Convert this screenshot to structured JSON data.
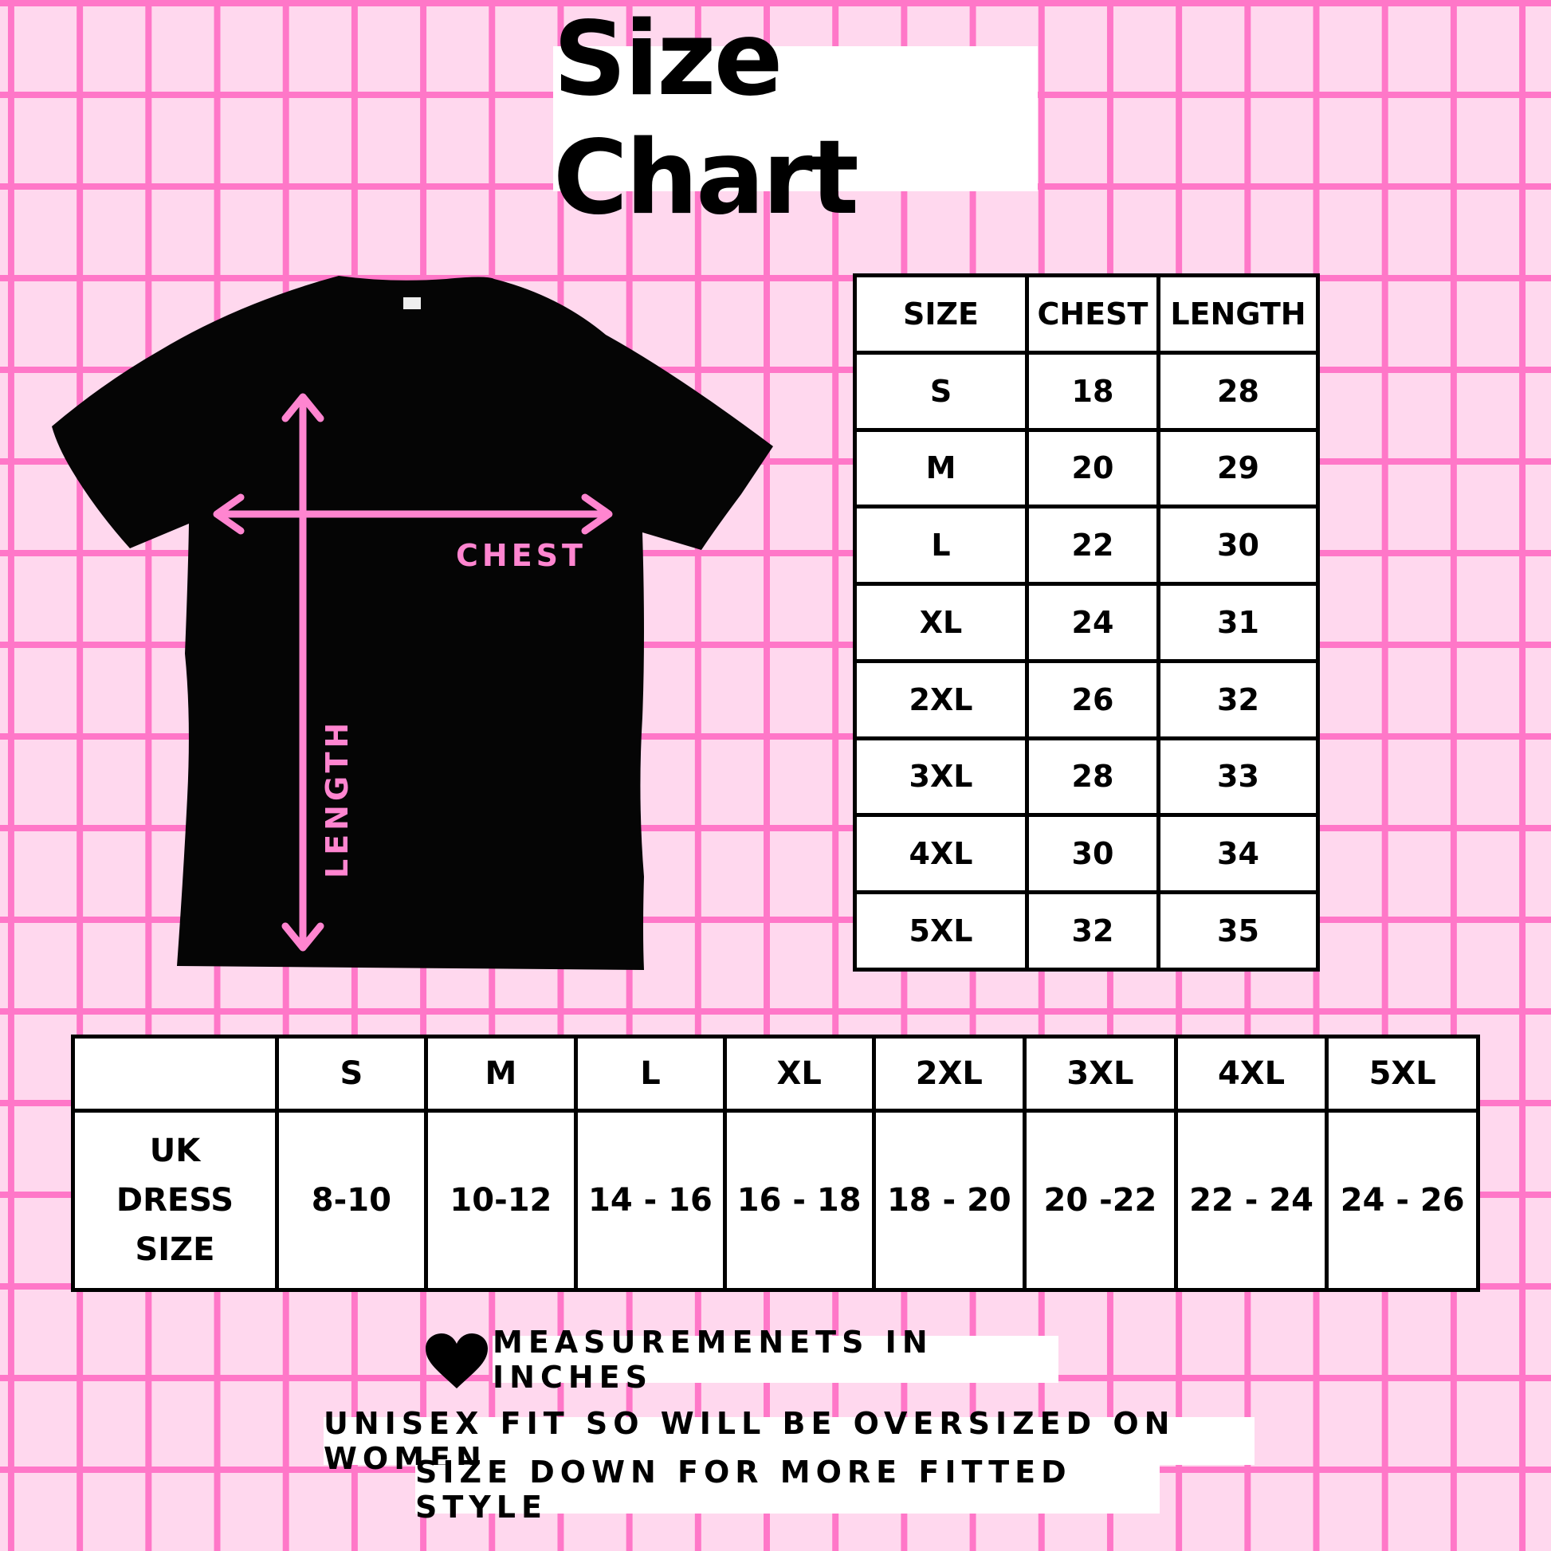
{
  "title": "Size Chart",
  "diagram": {
    "chest_label": "CHEST",
    "length_label": "LENGTH"
  },
  "size_table": {
    "headers": [
      "SIZE",
      "CHEST",
      "LENGTH"
    ],
    "rows": [
      [
        "S",
        "18",
        "28"
      ],
      [
        "M",
        "20",
        "29"
      ],
      [
        "L",
        "22",
        "30"
      ],
      [
        "XL",
        "24",
        "31"
      ],
      [
        "2XL",
        "26",
        "32"
      ],
      [
        "3XL",
        "28",
        "33"
      ],
      [
        "4XL",
        "30",
        "34"
      ],
      [
        "5XL",
        "32",
        "35"
      ]
    ]
  },
  "uk_table": {
    "headers": [
      "",
      "S",
      "M",
      "L",
      "XL",
      "2XL",
      "3XL",
      "4XL",
      "5XL"
    ],
    "row_label": "UK DRESS SIZE",
    "values": [
      "8-10",
      "10-12",
      "14 - 16",
      "16 - 18",
      "18 - 20",
      "20 -22",
      "22 - 24",
      "24 - 26"
    ]
  },
  "notes": {
    "measurement": "MEASUREMENETS IN  INCHES",
    "fit_line1": "UNISEX FIT SO WILL BE OVERSIZED ON WOMEN",
    "fit_line2": "SIZE DOWN FOR MORE FITTED STYLE"
  },
  "colors": {
    "background": "#ffd8ee",
    "grid": "#ff77c8",
    "accent": "#ff85d0",
    "shirt": "#000000"
  }
}
